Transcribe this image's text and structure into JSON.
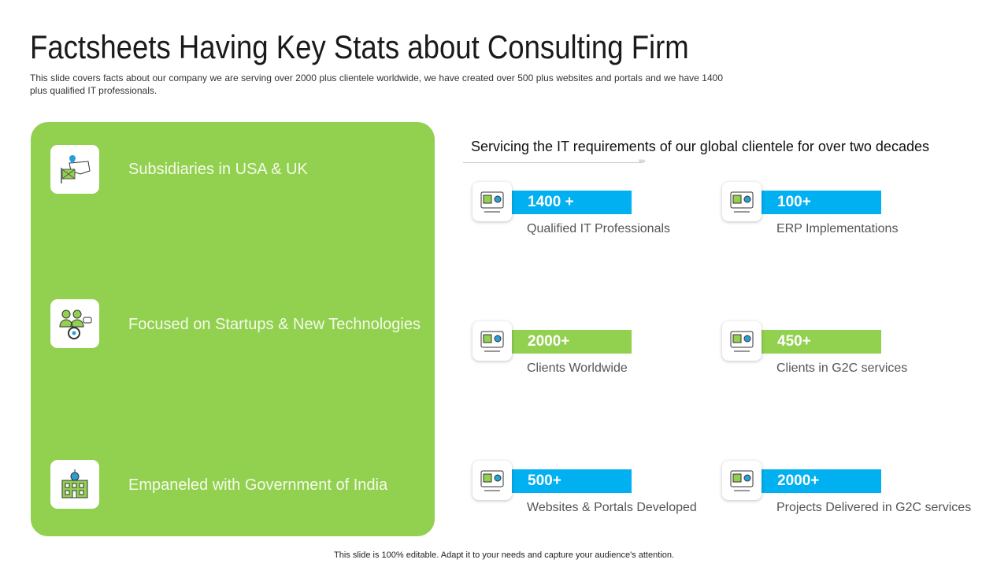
{
  "title": "Factsheets Having Key Stats about Consulting Firm",
  "description": "This slide covers facts about our company we are serving over 2000 plus clientele worldwide, we have created over 500 plus websites and portals and we have 1400 plus qualified IT professionals.",
  "features": [
    {
      "label": "Subsidiaries in USA & UK",
      "icon": "map-flag-icon"
    },
    {
      "label": "Focused on Startups & New Technologies",
      "icon": "team-gear-icon"
    },
    {
      "label": "Empaneled with Government of India",
      "icon": "government-building-icon"
    }
  ],
  "subtitle": "Servicing the IT requirements of our global clientele for over two decades",
  "stats": [
    {
      "value": "1400 +",
      "label": "Qualified IT  Professionals",
      "color": "#00b0f0",
      "icon": "developer-icon"
    },
    {
      "value": "100+",
      "label": "ERP Implementations",
      "color": "#00b0f0",
      "icon": "cloud-window-icon"
    },
    {
      "value": "2000+",
      "label": "Clients Worldwide",
      "color": "#92d050",
      "icon": "globe-people-icon"
    },
    {
      "value": "450+",
      "label": "Clients in G2C services",
      "color": "#92d050",
      "icon": "team-gear-icon"
    },
    {
      "value": "500+",
      "label": "Websites & Portals Developed",
      "color": "#00b0f0",
      "icon": "monitor-web-icon"
    },
    {
      "value": "2000+",
      "label": "Projects Delivered in G2C services",
      "color": "#00b0f0",
      "icon": "document-gear-icon"
    }
  ],
  "footer": "This slide is 100% editable. Adapt it to your needs and capture your audience's attention."
}
